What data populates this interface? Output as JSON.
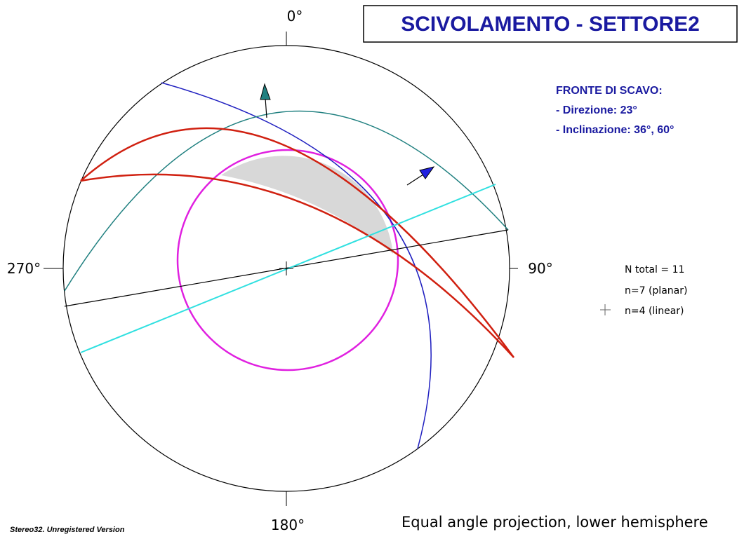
{
  "title": "SCIVOLAMENTO - SETTORE2",
  "directions": {
    "north": "0°",
    "east": "90°",
    "south": "180°",
    "west": "270°"
  },
  "info": {
    "heading": "FRONTE DI SCAVO:",
    "lines": [
      "- Direzione: 23°",
      "- Inclinazione: 36°, 60°"
    ]
  },
  "legend": {
    "total": "N total = 11",
    "planar": "n=7 (planar)",
    "linear": "n=4 (linear)"
  },
  "projection": "Equal angle projection, lower hemisphere",
  "watermark": "Stereo32. Unregistered Version"
}
